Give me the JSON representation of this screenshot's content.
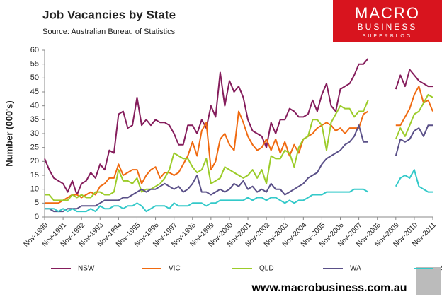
{
  "chart_data": {
    "type": "line",
    "title": "Job Vacancies by State",
    "subtitle": "Source: Australian Bureau of Statistics",
    "y_label": "Number (000's)",
    "categories": [
      "Nov-1990",
      null,
      null,
      null,
      "Nov-1991",
      null,
      null,
      null,
      "Nov-1992",
      null,
      null,
      null,
      "Nov-1993",
      null,
      null,
      null,
      "Nov-1994",
      null,
      null,
      null,
      "Nov-1995",
      null,
      null,
      null,
      "Nov-1996",
      null,
      null,
      null,
      "Nov-1997",
      null,
      null,
      null,
      "Nov-1998",
      null,
      null,
      null,
      "Nov-1999",
      null,
      null,
      null,
      "Nov-2000",
      null,
      null,
      null,
      "Nov-2001",
      null,
      null,
      null,
      "Nov-2002",
      null,
      null,
      null,
      "Nov-2003",
      null,
      null,
      null,
      "Nov-2004",
      null,
      null,
      null,
      "Nov-2005",
      null,
      null,
      null,
      "Nov-2006",
      null,
      null,
      null,
      "Nov-2007",
      null,
      null,
      null,
      "Nov-2008",
      null,
      null,
      null,
      "Nov-2009",
      null,
      null,
      null,
      "Nov-2010",
      null,
      null,
      null,
      "Nov-2011"
    ],
    "series": [
      {
        "name": "NSW",
        "color": "#851d5c",
        "values": [
          21,
          17,
          14,
          13,
          12,
          9,
          13,
          8,
          12,
          13,
          16,
          14,
          19,
          17,
          24,
          23,
          37,
          38,
          32,
          33,
          43,
          33,
          35,
          33,
          35,
          34,
          34,
          33,
          30,
          26,
          26,
          33,
          33,
          30,
          35,
          32,
          40,
          36,
          52,
          40,
          49,
          45,
          47,
          43,
          35,
          31,
          30,
          29,
          25,
          34,
          30,
          35,
          35,
          39,
          38,
          36,
          36,
          37,
          42,
          38,
          44,
          48,
          40,
          38,
          46,
          47,
          48,
          51,
          55,
          55,
          57,
          null,
          null,
          null,
          null,
          null,
          46,
          51,
          47,
          53,
          51,
          49,
          48,
          47,
          47
        ]
      },
      {
        "name": "VIC",
        "color": "#f06a10",
        "values": [
          5,
          5,
          5,
          5,
          6,
          7,
          8,
          8,
          7,
          8,
          9,
          8,
          11,
          12,
          14,
          14,
          19,
          15,
          16,
          17,
          17,
          12,
          15,
          17,
          18,
          14,
          16,
          16,
          15,
          16,
          19,
          22,
          27,
          22,
          31,
          34,
          17,
          20,
          28,
          30,
          26,
          24,
          38,
          34,
          29,
          26,
          24,
          25,
          28,
          24,
          28,
          23,
          27,
          22,
          26,
          23,
          28,
          29,
          30,
          32,
          33,
          34,
          33,
          31,
          32,
          30,
          32,
          32,
          32,
          37,
          38,
          null,
          null,
          null,
          null,
          null,
          33,
          33,
          36,
          39,
          44,
          47,
          41,
          42,
          38
        ]
      },
      {
        "name": "QLD",
        "color": "#9ccc2a",
        "values": [
          8,
          8,
          6,
          6,
          6,
          6,
          8,
          7,
          8,
          7,
          7,
          9,
          9,
          8,
          8,
          9,
          17,
          13,
          13,
          12,
          14,
          9,
          10,
          10,
          11,
          12,
          14,
          17,
          23,
          22,
          21,
          21,
          18,
          16,
          17,
          21,
          12,
          13,
          14,
          18,
          17,
          16,
          15,
          14,
          15,
          17,
          14,
          17,
          12,
          22,
          21,
          21,
          24,
          23,
          18,
          25,
          28,
          29,
          35,
          35,
          33,
          24,
          34,
          37,
          40,
          39,
          39,
          36,
          38,
          38,
          42,
          null,
          null,
          null,
          null,
          null,
          28,
          32,
          29,
          33,
          37,
          38,
          41,
          44,
          43
        ]
      },
      {
        "name": "WA",
        "color": "#5a5088",
        "values": [
          3,
          3,
          2,
          2,
          2,
          3,
          3,
          3,
          4,
          4,
          4,
          4,
          5,
          6,
          6,
          6,
          6,
          7,
          7,
          8,
          9,
          10,
          9,
          10,
          10,
          11,
          12,
          11,
          10,
          11,
          9,
          10,
          12,
          15,
          9,
          9,
          8,
          9,
          10,
          9,
          10,
          12,
          11,
          13,
          10,
          11,
          9,
          10,
          9,
          12,
          10,
          10,
          8,
          9,
          10,
          11,
          12,
          14,
          15,
          16,
          19,
          21,
          22,
          23,
          24,
          26,
          27,
          29,
          33,
          27,
          27,
          null,
          null,
          null,
          null,
          null,
          22,
          28,
          27,
          28,
          31,
          32,
          29,
          33,
          33
        ]
      },
      {
        "name": "SA",
        "color": "#33c9c9",
        "values": [
          3,
          3,
          3,
          2,
          3,
          2,
          3,
          2,
          2,
          2,
          3,
          2,
          4,
          3,
          3,
          4,
          4,
          3,
          4,
          4,
          5,
          4,
          2,
          3,
          4,
          4,
          4,
          3,
          5,
          4,
          4,
          4,
          5,
          5,
          5,
          4,
          5,
          5,
          6,
          6,
          6,
          6,
          6,
          6,
          7,
          6,
          7,
          7,
          6,
          7,
          7,
          6,
          5,
          6,
          5,
          6,
          6,
          7,
          8,
          8,
          8,
          9,
          9,
          9,
          9,
          9,
          9,
          10,
          10,
          10,
          9,
          null,
          null,
          null,
          null,
          null,
          11,
          14,
          15,
          14,
          17,
          11,
          10,
          9,
          9
        ]
      }
    ],
    "ylim": [
      0,
      60
    ],
    "yticks": [
      0,
      5,
      10,
      15,
      20,
      25,
      30,
      35,
      40,
      45,
      50,
      55,
      60
    ],
    "grid": false,
    "legend": "bottom"
  },
  "branding": {
    "logo": "MACRO",
    "logo_sub": "BUSINESS",
    "logo_tag": "SUPERBLOG",
    "website": "www.macrobusiness.com.au"
  }
}
